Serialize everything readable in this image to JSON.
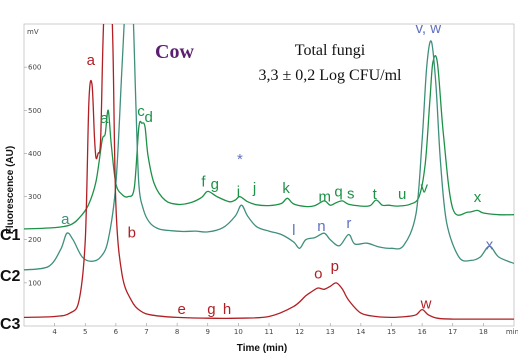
{
  "chart_data": {
    "type": "line",
    "title": "Cow",
    "annotation": [
      "Total fungi",
      "3,3 ± 0,2 Log CFU/ml"
    ],
    "xlabel": "Time (min)",
    "ylabel": "Fluorescence (AU)",
    "y_unit": "mV",
    "xlim": [
      3,
      19
    ],
    "ylim": [
      0,
      700
    ],
    "x_ticks": [
      "4",
      "5",
      "6",
      "7",
      "8",
      "9",
      "10",
      "11",
      "12",
      "13",
      "14",
      "15",
      "16",
      "17",
      "18",
      "min"
    ],
    "y_ticks": [
      "100",
      "200",
      "300",
      "400",
      "500",
      "600"
    ],
    "colors": {
      "C1": "#1e9148",
      "C2": "#3f8f7c",
      "C3": "#b11f24",
      "accent": "#6070c0",
      "title": "#5a1f70"
    },
    "series": [
      {
        "name": "C1",
        "x": [
          3.0,
          4.0,
          4.5,
          4.8,
          5.1,
          5.35,
          5.55,
          5.65,
          5.75,
          5.85,
          6.0,
          6.2,
          6.4,
          6.6,
          6.75,
          6.85,
          6.95,
          7.05,
          7.25,
          7.6,
          8.0,
          8.4,
          8.8,
          9.0,
          9.3,
          9.7,
          9.9,
          10.05,
          10.3,
          10.6,
          11.0,
          11.4,
          11.6,
          11.8,
          12.2,
          12.5,
          12.8,
          13.0,
          13.2,
          13.4,
          13.6,
          14.0,
          14.3,
          14.5,
          14.7,
          14.9,
          15.2,
          15.6,
          15.9,
          16.1,
          16.25,
          16.35,
          16.5,
          16.7,
          17.0,
          17.5,
          17.8,
          18.0,
          18.5,
          19.0
        ],
        "y": [
          225,
          228,
          234,
          250,
          280,
          335,
          430,
          445,
          500,
          420,
          330,
          305,
          300,
          320,
          460,
          470,
          462,
          395,
          330,
          292,
          282,
          285,
          298,
          312,
          300,
          288,
          292,
          300,
          288,
          281,
          279,
          284,
          296,
          283,
          277,
          279,
          290,
          280,
          286,
          290,
          282,
          278,
          279,
          292,
          280,
          280,
          278,
          282,
          300,
          375,
          520,
          610,
          610,
          440,
          272,
          264,
          268,
          262,
          258,
          258
        ]
      },
      {
        "name": "C2",
        "x": [
          3.0,
          3.8,
          4.2,
          4.4,
          4.6,
          4.9,
          5.2,
          5.5,
          5.75,
          6.0,
          6.2,
          6.35,
          6.45,
          6.55,
          6.65,
          6.75,
          6.9,
          7.1,
          7.4,
          7.8,
          8.2,
          8.6,
          9.0,
          9.5,
          9.9,
          10.1,
          10.3,
          10.6,
          11.0,
          11.4,
          11.8,
          12.0,
          12.2,
          12.5,
          12.8,
          13.0,
          13.3,
          13.6,
          13.8,
          14.2,
          14.6,
          15.0,
          15.4,
          15.8,
          16.0,
          16.15,
          16.3,
          16.45,
          16.6,
          16.8,
          17.2,
          17.6,
          17.9,
          18.2,
          18.5,
          19.0
        ],
        "y": [
          130,
          138,
          178,
          215,
          200,
          160,
          150,
          160,
          200,
          330,
          600,
          800,
          810,
          750,
          520,
          330,
          270,
          240,
          225,
          221,
          219,
          220,
          218,
          228,
          255,
          280,
          255,
          230,
          220,
          212,
          195,
          180,
          200,
          205,
          215,
          200,
          186,
          212,
          190,
          192,
          183,
          180,
          187,
          260,
          430,
          600,
          660,
          560,
          380,
          240,
          160,
          152,
          160,
          185,
          160,
          145
        ]
      },
      {
        "name": "C3",
        "x": [
          3.0,
          4.0,
          4.5,
          4.8,
          5.0,
          5.12,
          5.22,
          5.3,
          5.35,
          5.42,
          5.5,
          5.58,
          5.68,
          5.78,
          5.9,
          6.0,
          6.2,
          6.5,
          6.8,
          7.2,
          8.0,
          9.0,
          10.0,
          11.0,
          11.8,
          12.2,
          12.4,
          12.6,
          12.8,
          13.0,
          13.2,
          13.4,
          13.6,
          14.0,
          14.5,
          15.0,
          15.5,
          15.8,
          16.0,
          16.2,
          16.5,
          17.0,
          18.0,
          19.0
        ],
        "y": [
          20,
          22,
          30,
          60,
          200,
          520,
          560,
          440,
          390,
          400,
          430,
          660,
          850,
          880,
          660,
          280,
          120,
          60,
          35,
          25,
          20,
          18,
          18,
          22,
          45,
          70,
          80,
          88,
          85,
          92,
          100,
          85,
          60,
          30,
          22,
          20,
          22,
          26,
          38,
          26,
          18,
          16,
          16,
          16
        ]
      }
    ],
    "trace_labels": [
      "C1",
      "C2",
      "C3"
    ],
    "peak_labels": [
      {
        "text": "a",
        "x": 4.35,
        "y": 236,
        "series": "C2"
      },
      {
        "text": "a",
        "x": 5.18,
        "y": 605,
        "series": "C3"
      },
      {
        "text": "a",
        "x": 5.62,
        "y": 470,
        "series": "C1"
      },
      {
        "text": "a",
        "x": 5.8,
        "y": 918,
        "series": "C3"
      },
      {
        "text": "b",
        "x": 6.4,
        "y": 918,
        "series": "C2"
      },
      {
        "text": "c",
        "x": 6.82,
        "y": 487,
        "series": "C1"
      },
      {
        "text": "d",
        "x": 7.07,
        "y": 473,
        "series": "C1"
      },
      {
        "text": "b",
        "x": 6.52,
        "y": 205,
        "series": "C3"
      },
      {
        "text": "f",
        "x": 8.86,
        "y": 323,
        "series": "C1"
      },
      {
        "text": "g",
        "x": 9.23,
        "y": 318,
        "series": "C1"
      },
      {
        "text": "*",
        "x": 10.05,
        "y": 375,
        "series": "accent"
      },
      {
        "text": "i",
        "x": 10.0,
        "y": 300,
        "series": "C1"
      },
      {
        "text": "j",
        "x": 10.53,
        "y": 308,
        "series": "C1"
      },
      {
        "text": "k",
        "x": 11.56,
        "y": 308,
        "series": "C1"
      },
      {
        "text": "m",
        "x": 12.82,
        "y": 289,
        "series": "C1"
      },
      {
        "text": "q",
        "x": 13.27,
        "y": 300,
        "series": "C1"
      },
      {
        "text": "s",
        "x": 13.67,
        "y": 296,
        "series": "C1"
      },
      {
        "text": "t",
        "x": 14.45,
        "y": 294,
        "series": "C1"
      },
      {
        "text": "u",
        "x": 15.35,
        "y": 294,
        "series": "C1"
      },
      {
        "text": "v",
        "x": 16.07,
        "y": 310,
        "series": "C1"
      },
      {
        "text": "v, w",
        "x": 16.2,
        "y": 679,
        "series": "accent"
      },
      {
        "text": "x",
        "x": 17.81,
        "y": 287,
        "series": "C1"
      },
      {
        "text": "l",
        "x": 11.81,
        "y": 211,
        "series": "accent"
      },
      {
        "text": "n",
        "x": 12.71,
        "y": 220,
        "series": "accent"
      },
      {
        "text": "r",
        "x": 13.61,
        "y": 227,
        "series": "accent"
      },
      {
        "text": "x",
        "x": 18.2,
        "y": 177,
        "series": "accent"
      },
      {
        "text": "o",
        "x": 12.61,
        "y": 110,
        "series": "C3"
      },
      {
        "text": "p",
        "x": 13.15,
        "y": 127,
        "series": "C3"
      },
      {
        "text": "e",
        "x": 8.15,
        "y": 28,
        "series": "C3"
      },
      {
        "text": "g",
        "x": 9.12,
        "y": 28,
        "series": "C3"
      },
      {
        "text": "h",
        "x": 9.63,
        "y": 28,
        "series": "C3"
      },
      {
        "text": "w",
        "x": 16.13,
        "y": 40,
        "series": "C3"
      }
    ]
  }
}
